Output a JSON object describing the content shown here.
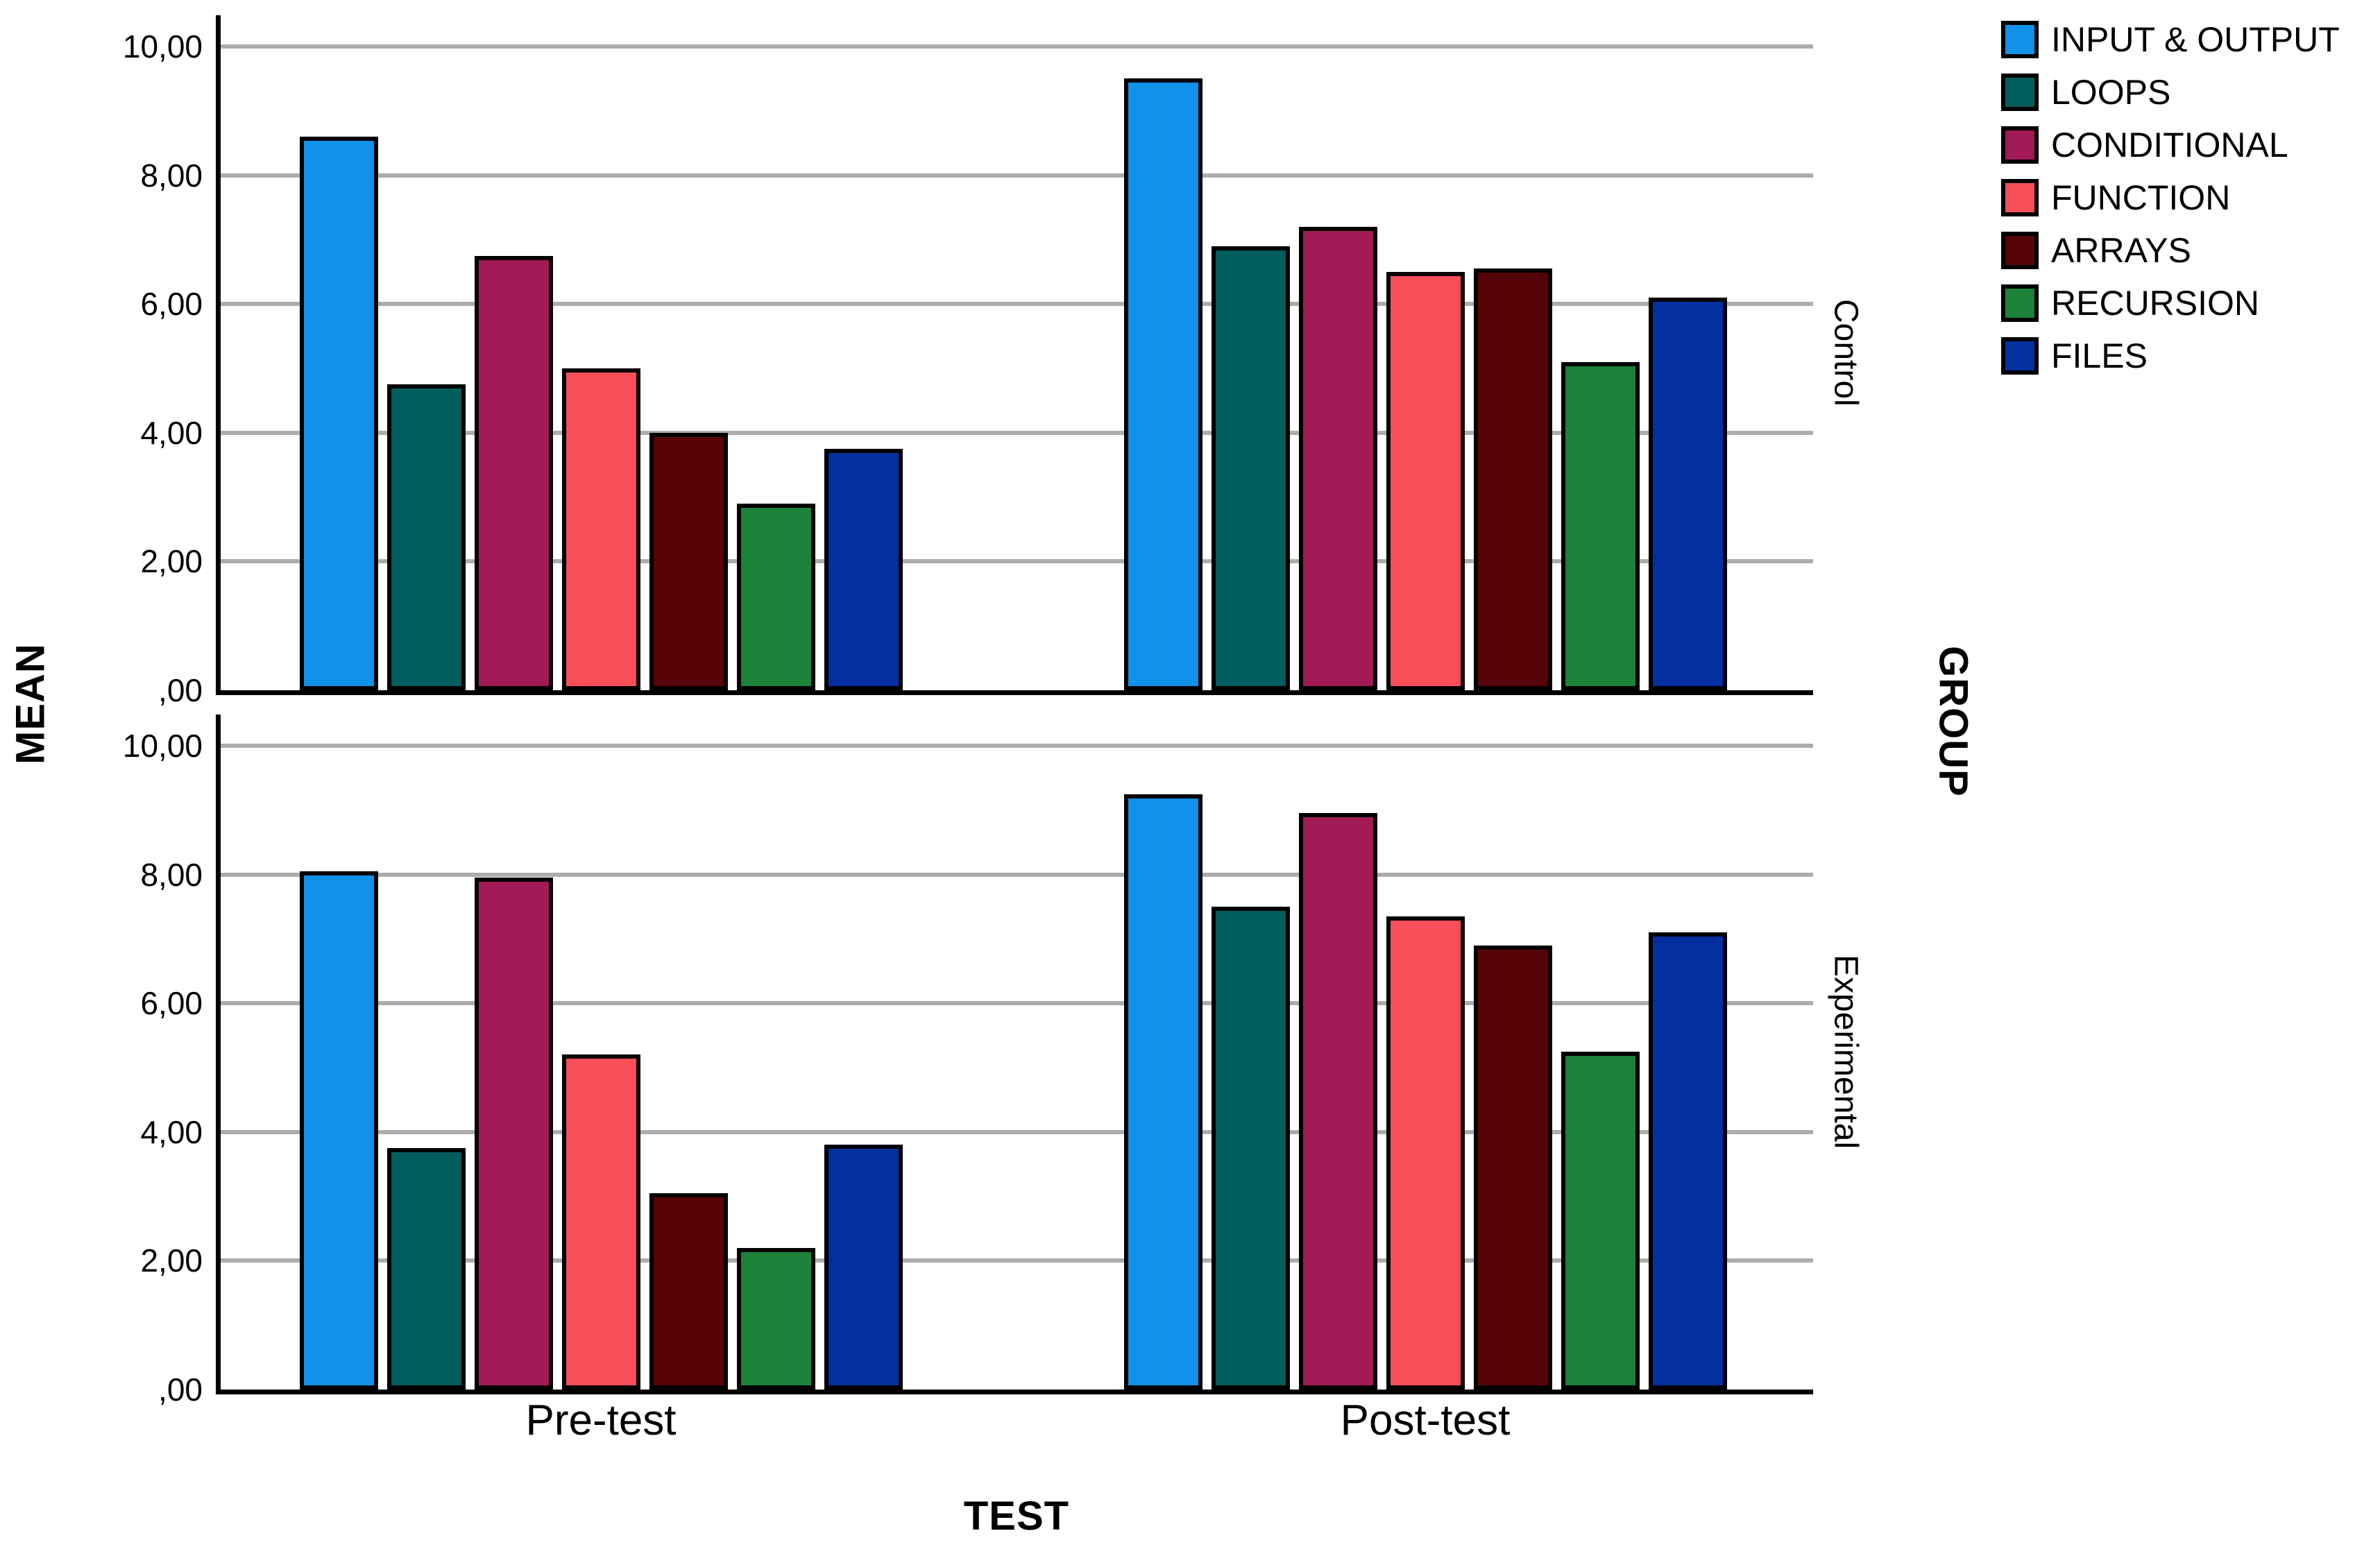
{
  "chart_data": {
    "type": "bar",
    "title": "",
    "xlabel": "TEST",
    "ylabel": "MEAN",
    "right_axis_label": "GROUP",
    "panels": [
      "Control",
      "Experimental"
    ],
    "categories": [
      "Pre-test",
      "Post-test"
    ],
    "ylim": [
      0,
      10.5
    ],
    "yticks": {
      "values": [
        10,
        8,
        6,
        4,
        2,
        0
      ],
      "labels": [
        "10,00",
        "8,00",
        "6,00",
        "4,00",
        "2,00",
        ",00"
      ]
    },
    "grid": "horizontal",
    "gridline_color": "#ACACAC",
    "bar_outline_color": "#000000",
    "legend_position": "top-right",
    "value_layout": "values[panel_index][category_index]",
    "series": [
      {
        "name": "INPUT & OUTPUT",
        "color": "#1191E8",
        "values": [
          [
            8.6,
            9.5
          ],
          [
            8.05,
            9.25
          ]
        ]
      },
      {
        "name": "LOOPS",
        "color": "#025E5E",
        "values": [
          [
            4.75,
            6.9
          ],
          [
            3.75,
            7.5
          ]
        ]
      },
      {
        "name": "CONDITIONAL",
        "color": "#A11A55",
        "values": [
          [
            6.75,
            7.2
          ],
          [
            7.95,
            8.95
          ]
        ]
      },
      {
        "name": "FUNCTION",
        "color": "#FA4E58",
        "values": [
          [
            5.0,
            6.5
          ],
          [
            5.2,
            7.35
          ]
        ]
      },
      {
        "name": "ARRAYS",
        "color": "#560407",
        "values": [
          [
            4.0,
            6.55
          ],
          [
            3.05,
            6.9
          ]
        ]
      },
      {
        "name": "RECURSION",
        "color": "#1C8139",
        "values": [
          [
            2.9,
            5.1
          ],
          [
            2.2,
            5.25
          ]
        ]
      },
      {
        "name": "FILES",
        "color": "#0330A0",
        "values": [
          [
            3.75,
            6.1
          ],
          [
            3.8,
            7.1
          ]
        ]
      }
    ]
  }
}
